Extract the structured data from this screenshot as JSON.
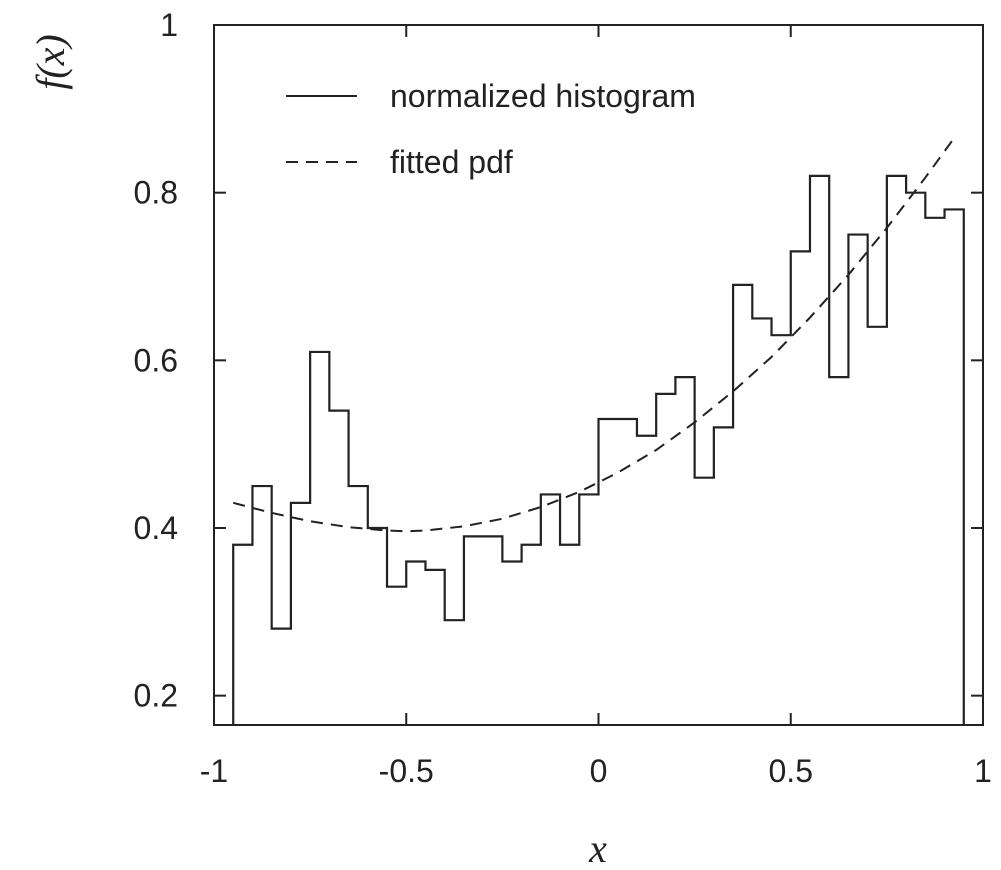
{
  "chart_data": {
    "type": "line",
    "xlabel": "x",
    "ylabel": "f(x)",
    "xlim": [
      -1,
      1
    ],
    "ylim": [
      0.165,
      1
    ],
    "x_ticks": [
      -1,
      -0.5,
      0,
      0.5,
      1
    ],
    "x_tick_labels": [
      "-1",
      "-0.5",
      "0",
      "0.5",
      "1"
    ],
    "y_ticks": [
      0.2,
      0.4,
      0.6,
      0.8,
      1
    ],
    "y_tick_labels": [
      "0.2",
      "0.4",
      "0.6",
      "0.8",
      "1"
    ],
    "grid": false,
    "legend_position": "top-left",
    "series": [
      {
        "name": "normalized histogram",
        "style": "solid",
        "kind": "step",
        "bin_edges": [
          -0.95,
          -0.9,
          -0.85,
          -0.8,
          -0.75,
          -0.7,
          -0.65,
          -0.6,
          -0.55,
          -0.5,
          -0.45,
          -0.4,
          -0.35,
          -0.3,
          -0.25,
          -0.2,
          -0.15,
          -0.1,
          -0.05,
          0,
          0.05,
          0.1,
          0.15,
          0.2,
          0.25,
          0.3,
          0.35,
          0.4,
          0.45,
          0.5,
          0.55,
          0.6,
          0.65,
          0.7,
          0.75,
          0.8,
          0.85,
          0.9,
          0.95
        ],
        "values": [
          0.38,
          0.45,
          0.28,
          0.43,
          0.61,
          0.54,
          0.45,
          0.4,
          0.33,
          0.36,
          0.35,
          0.29,
          0.39,
          0.39,
          0.36,
          0.38,
          0.44,
          0.38,
          0.44,
          0.53,
          0.53,
          0.51,
          0.56,
          0.58,
          0.46,
          0.52,
          0.69,
          0.65,
          0.63,
          0.73,
          0.82,
          0.58,
          0.75,
          0.64,
          0.82,
          0.8,
          0.77,
          0.78
        ]
      },
      {
        "name": "fitted pdf",
        "style": "dashed",
        "kind": "line",
        "x": [
          -0.95,
          -0.85,
          -0.75,
          -0.65,
          -0.55,
          -0.5,
          -0.45,
          -0.35,
          -0.25,
          -0.15,
          -0.05,
          0.05,
          0.15,
          0.25,
          0.35,
          0.45,
          0.55,
          0.65,
          0.75,
          0.85,
          0.92
        ],
        "values": [
          0.43,
          0.418,
          0.408,
          0.401,
          0.397,
          0.396,
          0.397,
          0.402,
          0.411,
          0.425,
          0.443,
          0.466,
          0.493,
          0.526,
          0.563,
          0.604,
          0.651,
          0.702,
          0.758,
          0.818,
          0.862
        ]
      }
    ]
  }
}
